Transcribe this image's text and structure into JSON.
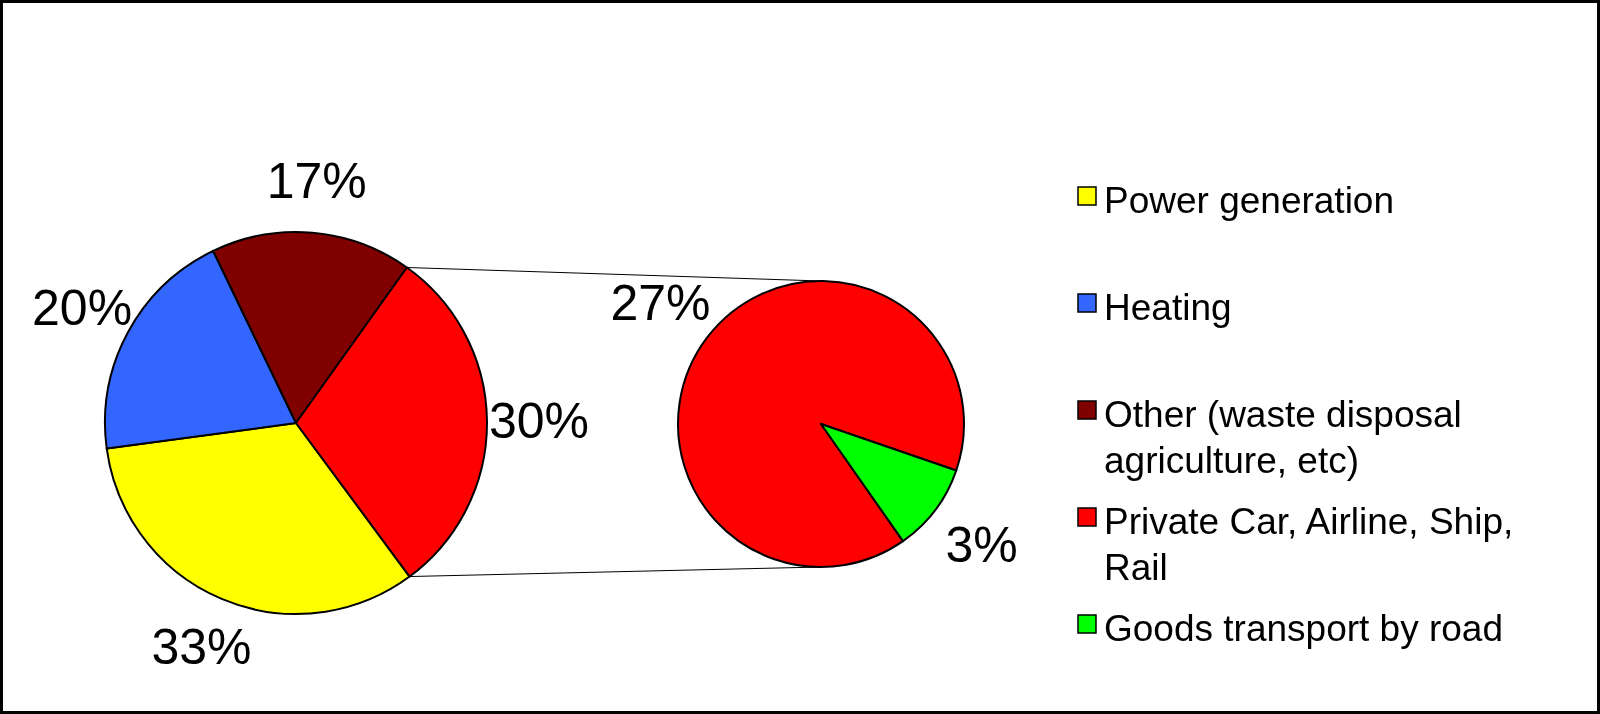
{
  "chart_data": [
    {
      "type": "pie",
      "categories": [
        "Power generation",
        "Heating",
        "Other (waste disposal agriculture, etc)",
        null
      ],
      "values": [
        33,
        20,
        17,
        30
      ],
      "value_labels": [
        "33%",
        "20%",
        "17%",
        "30%"
      ],
      "colors": [
        "#ffff00",
        "#3366ff",
        "#800000",
        "#ff0000"
      ],
      "legend": "right"
    },
    {
      "type": "pie",
      "categories": [
        "Private Car, Airline, Ship, Rail",
        "Goods transport by road"
      ],
      "values": [
        27,
        3
      ],
      "value_labels": [
        "27%",
        "3%"
      ],
      "colors": [
        "#ff0000",
        "#00ff00"
      ],
      "legend": "right"
    }
  ]
}
